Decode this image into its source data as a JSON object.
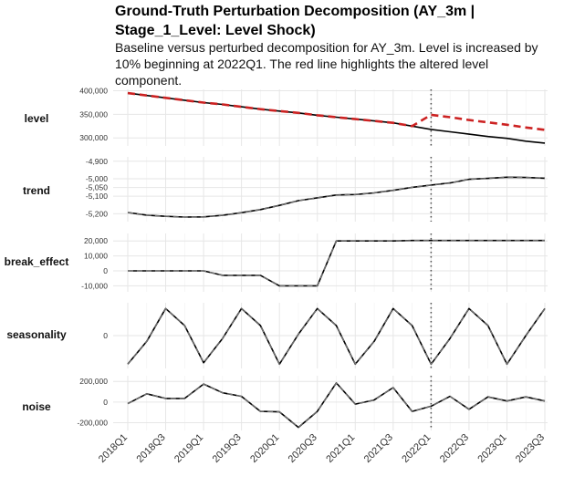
{
  "title": "Ground-Truth Perturbation Decomposition (AY_3m | Stage_1_Level: Level Shock)",
  "subtitle": "Baseline versus perturbed decomposition for AY_3m. Level is increased by 10% beginning at 2022Q1. The red line highlights the altered level component.",
  "chart_data": {
    "type": "line",
    "x": [
      "2018Q1",
      "2018Q2",
      "2018Q3",
      "2018Q4",
      "2019Q1",
      "2019Q2",
      "2019Q3",
      "2019Q4",
      "2020Q1",
      "2020Q2",
      "2020Q3",
      "2020Q4",
      "2021Q1",
      "2021Q2",
      "2021Q3",
      "2021Q4",
      "2022Q1",
      "2022Q2",
      "2022Q3",
      "2022Q4",
      "2023Q1",
      "2023Q2",
      "2023Q3"
    ],
    "x_tick_labels": [
      "2018Q1",
      "2018Q3",
      "2019Q1",
      "2019Q3",
      "2020Q1",
      "2020Q3",
      "2021Q1",
      "2021Q3",
      "2022Q1",
      "2022Q3",
      "2023Q1",
      "2023Q3"
    ],
    "x_tick_indices": [
      0,
      2,
      4,
      6,
      8,
      10,
      12,
      14,
      16,
      18,
      20,
      22
    ],
    "event": {
      "x": "2022Q1",
      "style": "dotted vertical line"
    },
    "colors": {
      "baseline": "#000000",
      "perturbed": "#cc2222",
      "grid": "#ebebeb",
      "event_line": "#555555"
    },
    "panels": [
      {
        "label": "level",
        "ylim": [
          283000,
          403000
        ],
        "y_ticks": [
          300000,
          350000,
          400000
        ],
        "y_tick_labels": [
          "300,000",
          "350,000",
          "400,000"
        ],
        "series": [
          {
            "role": "baseline",
            "values": [
              395000,
              390000,
              385000,
              380000,
              375000,
              371000,
              366000,
              361000,
              357000,
              353000,
              348000,
              344000,
              340000,
              336000,
              332000,
              325000,
              318000,
              313000,
              308000,
              303000,
              299000,
              293000,
              289000
            ]
          },
          {
            "role": "perturbed",
            "values": [
              395000,
              390000,
              385000,
              380000,
              375000,
              371000,
              366000,
              361000,
              357000,
              353000,
              348000,
              344000,
              340000,
              336000,
              332000,
              325000,
              349000,
              344000,
              338000,
              333000,
              328000,
              322000,
              317000
            ]
          }
        ]
      },
      {
        "label": "trend",
        "ylim": [
          -5245,
          -4875
        ],
        "y_ticks": [
          -5200,
          -5100,
          -5050,
          -5000,
          -4900
        ],
        "y_tick_labels": [
          "-5,200",
          "-5,100",
          "-5,050",
          "-5,000",
          "-4,900"
        ],
        "series": [
          {
            "role": "baseline",
            "values": [
              -5193,
              -5208,
              -5215,
              -5219,
              -5218,
              -5209,
              -5194,
              -5176,
              -5152,
              -5125,
              -5109,
              -5093,
              -5090,
              -5081,
              -5066,
              -5049,
              -5036,
              -5024,
              -5003,
              -4998,
              -4991,
              -4993,
              -4997
            ]
          },
          {
            "role": "perturbed",
            "values": [
              -5193,
              -5208,
              -5215,
              -5219,
              -5218,
              -5209,
              -5194,
              -5176,
              -5152,
              -5125,
              -5109,
              -5093,
              -5090,
              -5081,
              -5066,
              -5049,
              -5036,
              -5024,
              -5003,
              -4998,
              -4991,
              -4993,
              -4997
            ]
          }
        ]
      },
      {
        "label": "break_effect",
        "ylim": [
          -14000,
          25000
        ],
        "y_ticks": [
          -10000,
          0,
          10000,
          20000
        ],
        "y_tick_labels": [
          "-10,000",
          "0",
          "10,000",
          "20,000"
        ],
        "series": [
          {
            "role": "baseline",
            "values": [
              0,
              0,
              0,
              0,
              0,
              -3000,
              -3000,
              -3000,
              -10000,
              -10000,
              -10000,
              20000,
              20000,
              20000,
              20000,
              20300,
              20300,
              20300,
              20300,
              20300,
              20300,
              20300,
              20300
            ]
          },
          {
            "role": "perturbed",
            "values": [
              0,
              0,
              0,
              0,
              0,
              -3000,
              -3000,
              -3000,
              -10000,
              -10000,
              -10000,
              20000,
              20000,
              20000,
              20000,
              20300,
              20300,
              20300,
              20300,
              20300,
              20300,
              20300,
              20300
            ]
          }
        ]
      },
      {
        "label": "seasonality",
        "ylim": [
          -1.15,
          1.15
        ],
        "y_ticks": [
          0
        ],
        "y_tick_labels": [
          "0"
        ],
        "series": [
          {
            "role": "baseline",
            "values": [
              -1,
              -0.2,
              0.95,
              0.35,
              -0.95,
              -0.1,
              0.95,
              0.35,
              -1,
              0.05,
              0.95,
              0.35,
              -1,
              -0.2,
              0.95,
              0.35,
              -1,
              -0.1,
              0.95,
              0.35,
              -1,
              0,
              0.95
            ]
          },
          {
            "role": "perturbed",
            "values": [
              -1,
              -0.2,
              0.95,
              0.35,
              -0.95,
              -0.1,
              0.95,
              0.35,
              -1,
              0.05,
              0.95,
              0.35,
              -1,
              -0.2,
              0.95,
              0.35,
              -1,
              -0.1,
              0.95,
              0.35,
              -1,
              0,
              0.95
            ]
          }
        ]
      },
      {
        "label": "noise",
        "ylim": [
          -275000,
          255000
        ],
        "y_ticks": [
          -200000,
          0,
          200000
        ],
        "y_tick_labels": [
          "-200,000",
          "0",
          "200,000"
        ],
        "series": [
          {
            "role": "baseline",
            "values": [
              -15000,
              80000,
              35000,
              35000,
              175000,
              90000,
              55000,
              -90000,
              -95000,
              -245000,
              -90000,
              185000,
              -20000,
              20000,
              140000,
              -90000,
              -40000,
              55000,
              -70000,
              50000,
              10000,
              50000,
              10000
            ]
          },
          {
            "role": "perturbed",
            "values": [
              -15000,
              80000,
              35000,
              35000,
              175000,
              90000,
              55000,
              -90000,
              -95000,
              -245000,
              -90000,
              185000,
              -20000,
              20000,
              140000,
              -90000,
              -40000,
              55000,
              -70000,
              50000,
              10000,
              50000,
              10000
            ]
          }
        ]
      }
    ]
  }
}
